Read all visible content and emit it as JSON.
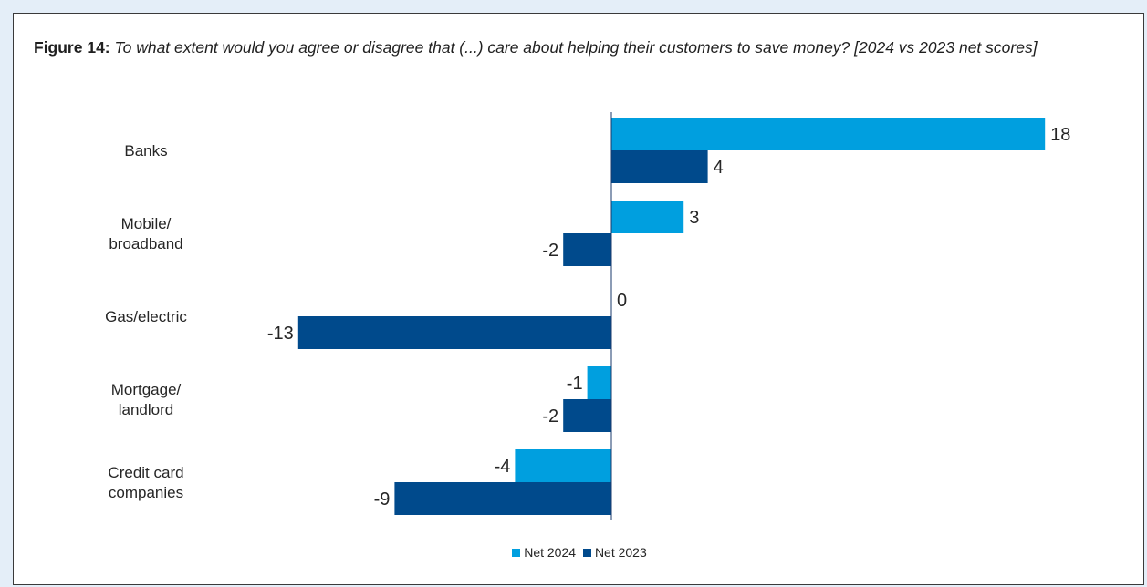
{
  "caption": {
    "figure_number": "Figure 14:",
    "text": "To what extent would you agree or disagree that (...) care about helping their customers to save money? [2024 vs 2023 net scores]"
  },
  "colors": {
    "net_2024": "#009fdf",
    "net_2023": "#004a8c",
    "axis": "#1a3a6b"
  },
  "chart_data": {
    "type": "bar",
    "orientation": "horizontal",
    "categories": [
      [
        "Banks"
      ],
      [
        "Mobile/",
        "broadband"
      ],
      [
        "Gas/electric"
      ],
      [
        "Mortgage/",
        "landlord"
      ],
      [
        "Credit card",
        "companies"
      ]
    ],
    "series": [
      {
        "name": "Net 2024",
        "values": [
          18,
          3,
          0,
          -1,
          -4
        ]
      },
      {
        "name": "Net 2023",
        "values": [
          4,
          -2,
          -13,
          -2,
          -9
        ]
      }
    ],
    "xlim": [
      -13,
      18
    ],
    "grid": false,
    "legend": "bottom-center"
  }
}
